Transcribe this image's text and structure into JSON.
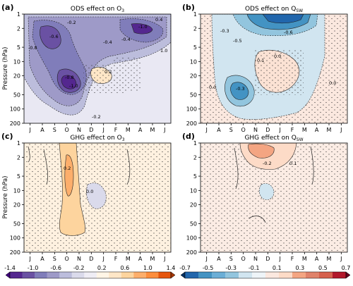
{
  "figure": {
    "months": [
      "J",
      "A",
      "S",
      "O",
      "N",
      "D",
      "J",
      "F",
      "M",
      "A",
      "M",
      "J"
    ],
    "pressure_ticks": [
      1,
      2,
      5,
      10,
      20,
      50,
      100,
      200
    ],
    "ylabel": "Pressure (hPa)"
  },
  "chart_data": [
    {
      "type": "heatmap",
      "panel": "(a)",
      "title": "ODS effect on O",
      "title_sub": "3",
      "x": [
        "J",
        "A",
        "S",
        "O",
        "N",
        "D",
        "J",
        "F",
        "M",
        "A",
        "M",
        "J"
      ],
      "y_ticks": [
        1,
        2,
        5,
        10,
        20,
        50,
        100,
        200
      ],
      "ylabel": "Pressure (hPa)",
      "y_scale": "log",
      "ylim": [
        200,
        1
      ],
      "colorbar": [
        -1.4,
        -1.0,
        -0.6,
        -0.2,
        0.2,
        0.6,
        1.0,
        1.4
      ],
      "colormap": "purple-orange",
      "contour_labels": [
        "-0.2",
        "-0.6",
        "-0.4",
        "0.4",
        "-0.8",
        "-1.0",
        "-0.4",
        "-0.8",
        "-1.0",
        "1.0",
        "0.2",
        "-0.2"
      ],
      "stippling": "non-significant regions"
    },
    {
      "type": "heatmap",
      "panel": "(b)",
      "title": "ODS effect on Q",
      "title_sub": "SW",
      "x": [
        "J",
        "A",
        "S",
        "O",
        "N",
        "D",
        "J",
        "F",
        "M",
        "A",
        "M",
        "J"
      ],
      "y_ticks": [
        1,
        2,
        5,
        10,
        20,
        50,
        100,
        200
      ],
      "y_scale": "log",
      "ylim": [
        200,
        1
      ],
      "colorbar": [
        -0.7,
        -0.5,
        -0.3,
        -0.1,
        0.1,
        0.3,
        0.5,
        0.7
      ],
      "colormap": "blue-red",
      "contour_labels": [
        "-0.3",
        "-0.6",
        "-0.5",
        "0.1",
        "0.0",
        "-0.3",
        "0.0",
        "0.0"
      ],
      "stippling": "non-significant regions"
    },
    {
      "type": "heatmap",
      "panel": "(c)",
      "title": "GHG effect on O",
      "title_sub": "3",
      "x": [
        "J",
        "A",
        "S",
        "O",
        "N",
        "D",
        "J",
        "F",
        "M",
        "A",
        "M",
        "J"
      ],
      "y_ticks": [
        1,
        2,
        5,
        10,
        20,
        50,
        100,
        200
      ],
      "ylabel": "Pressure (hPa)",
      "y_scale": "log",
      "ylim": [
        200,
        1
      ],
      "colorbar": [
        -1.4,
        -1.0,
        -0.6,
        -0.2,
        0.2,
        0.6,
        1.0,
        1.4
      ],
      "colormap": "purple-orange",
      "contour_labels": [
        "0.2",
        "0.0"
      ],
      "stippling": "non-significant regions"
    },
    {
      "type": "heatmap",
      "panel": "(d)",
      "title": "GHG effect on Q",
      "title_sub": "SW",
      "x": [
        "J",
        "A",
        "S",
        "O",
        "N",
        "D",
        "J",
        "F",
        "M",
        "A",
        "M",
        "J"
      ],
      "y_ticks": [
        1,
        2,
        5,
        10,
        20,
        50,
        100,
        200
      ],
      "y_scale": "log",
      "ylim": [
        200,
        1
      ],
      "colorbar": [
        -0.7,
        -0.5,
        -0.3,
        -0.1,
        0.1,
        0.3,
        0.5,
        0.7
      ],
      "colormap": "blue-red",
      "contour_labels": [
        "-0.2",
        "0.1"
      ],
      "stippling": "non-significant regions"
    }
  ],
  "colorbars": [
    {
      "tick_labels": [
        "-1.4",
        "-1.0",
        "-0.6",
        "-0.2",
        "0.2",
        "0.6",
        "1.0",
        "1.4"
      ],
      "colors": [
        "#3f007d",
        "#54278f",
        "#6a51a3",
        "#807dba",
        "#9e9ac8",
        "#bcbddc",
        "#dadaeb",
        "#efedf5",
        "#fff5e6",
        "#fee6c7",
        "#fdd49e",
        "#fdae6b",
        "#fd8d3c",
        "#e6550d",
        "#a63603"
      ]
    },
    {
      "tick_labels": [
        "-0.7",
        "-0.5",
        "-0.3",
        "-0.1",
        "0.1",
        "0.3",
        "0.5",
        "0.7"
      ],
      "colors": [
        "#053061",
        "#2166ac",
        "#4393c3",
        "#6baed6",
        "#92c5de",
        "#d1e5f0",
        "#eef4f8",
        "#fbe8df",
        "#fddbc7",
        "#f4a582",
        "#e0826a",
        "#d6604d",
        "#b2182b",
        "#67001f"
      ]
    }
  ]
}
